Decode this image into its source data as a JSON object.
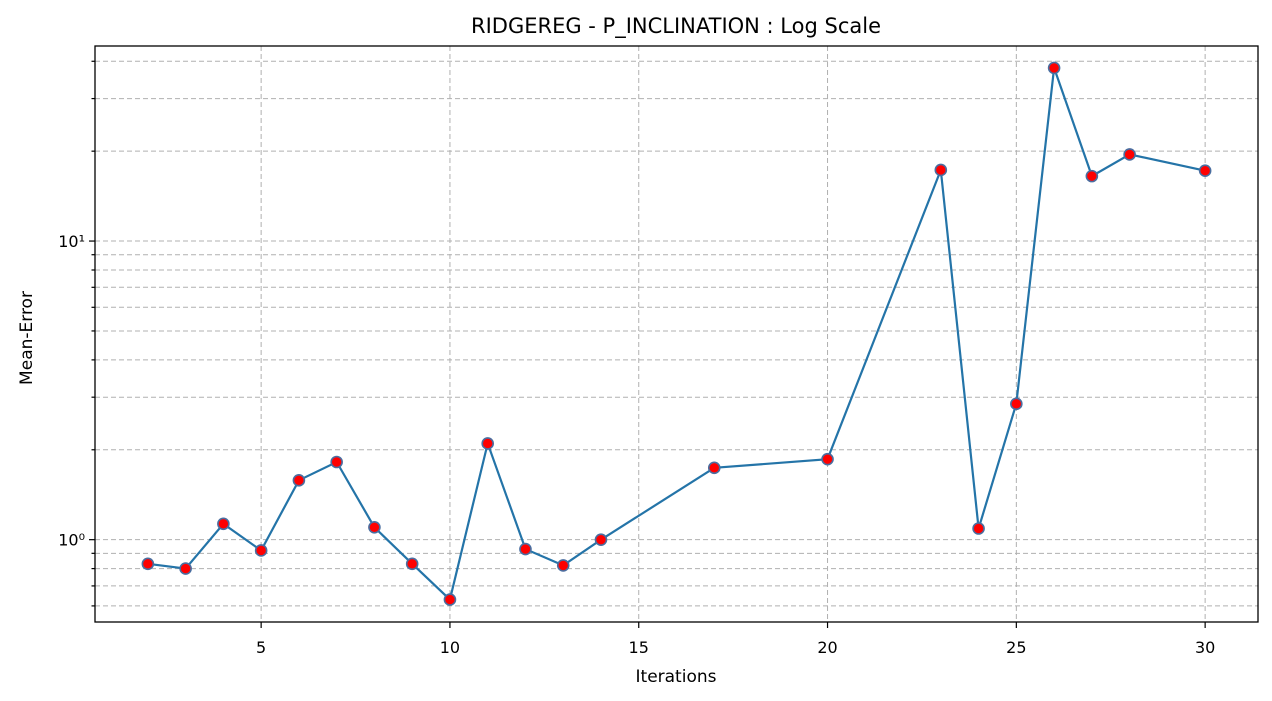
{
  "chart_data": {
    "type": "line",
    "title": "RIDGEREG - P_INCLINATION : Log Scale",
    "xlabel": "Iterations",
    "ylabel": "Mean-Error",
    "yscale": "log",
    "xlim": [
      0.6,
      31.4
    ],
    "ylim": [
      0.53,
      45
    ],
    "grid": true,
    "x_ticks": [
      5,
      10,
      15,
      20,
      25,
      30
    ],
    "x_tick_labels": [
      "5",
      "10",
      "15",
      "20",
      "25",
      "30"
    ],
    "y_major_ticks": [
      1,
      10
    ],
    "y_major_tick_labels": [
      "10⁰",
      "10¹"
    ],
    "y_minor_ticks": [
      0.6,
      0.7,
      0.8,
      0.9,
      2,
      3,
      4,
      5,
      6,
      7,
      8,
      9,
      20,
      30,
      40
    ],
    "line_color": "#2474a8",
    "marker_fill": "#ff0000",
    "marker_edge": "#4a6ea0",
    "series": [
      {
        "x": [
          2,
          3,
          4,
          5,
          6,
          7,
          8,
          9,
          10,
          11,
          12,
          13,
          14,
          17,
          20,
          23,
          24,
          25,
          26,
          27,
          28,
          30
        ],
        "y": [
          0.83,
          0.8,
          1.13,
          0.92,
          1.58,
          1.82,
          1.1,
          0.83,
          0.63,
          2.1,
          0.93,
          0.82,
          1.0,
          1.74,
          1.86,
          17.3,
          1.09,
          2.85,
          38.0,
          16.5,
          19.5,
          17.2
        ]
      }
    ]
  }
}
